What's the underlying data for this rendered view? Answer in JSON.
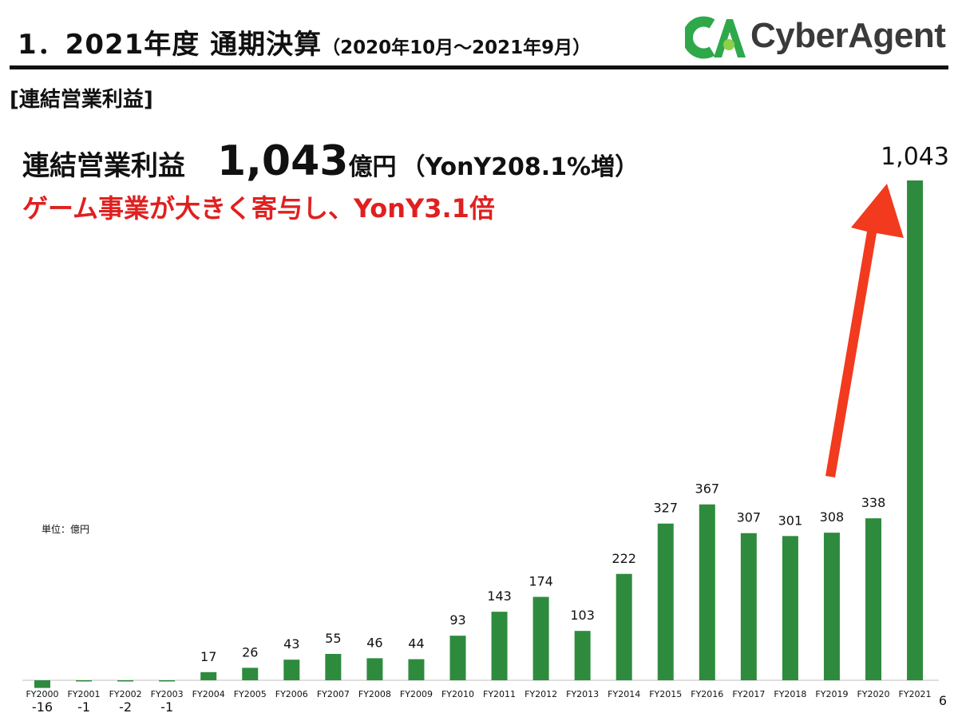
{
  "header": {
    "title_main": "1．2021年度 通期決算",
    "title_period": "（2020年10月～2021年9月）",
    "logo_text": "CyberAgent",
    "logo_mark": "CA"
  },
  "section_label": "[連結営業利益]",
  "headline": {
    "label": "連結営業利益",
    "value": "1,043",
    "unit": "億円",
    "growth": "（YonY208.1%増）"
  },
  "subline": "ゲーム事業が大きく寄与し、YonY3.1倍",
  "unit_note": "単位：億円",
  "page_number": "6",
  "colors": {
    "bar": "#2e8b3e",
    "arrow": "#f23a1e",
    "subline": "#e02020",
    "logo_green": "#2fa84a"
  },
  "chart_data": {
    "type": "bar",
    "categories": [
      "FY2000",
      "FY2001",
      "FY2002",
      "FY2003",
      "FY2004",
      "FY2005",
      "FY2006",
      "FY2007",
      "FY2008",
      "FY2009",
      "FY2010",
      "FY2011",
      "FY2012",
      "FY2013",
      "FY2014",
      "FY2015",
      "FY2016",
      "FY2017",
      "FY2018",
      "FY2019",
      "FY2020",
      "FY2021"
    ],
    "values": [
      -16,
      -1,
      -2,
      -1,
      17,
      26,
      43,
      55,
      46,
      44,
      93,
      143,
      174,
      103,
      222,
      327,
      367,
      307,
      301,
      308,
      338,
      1043
    ],
    "data_labels": [
      "-16",
      "-1",
      "-2",
      "-1",
      "17",
      "26",
      "43",
      "55",
      "46",
      "44",
      "93",
      "143",
      "174",
      "103",
      "222",
      "327",
      "367",
      "307",
      "301",
      "308",
      "338",
      "1,043"
    ],
    "title": "",
    "xlabel": "",
    "ylabel": "",
    "ylim": [
      -16,
      1043
    ],
    "grid": false,
    "annotations": [
      "arrow from FY2019 up toward FY2021"
    ]
  }
}
